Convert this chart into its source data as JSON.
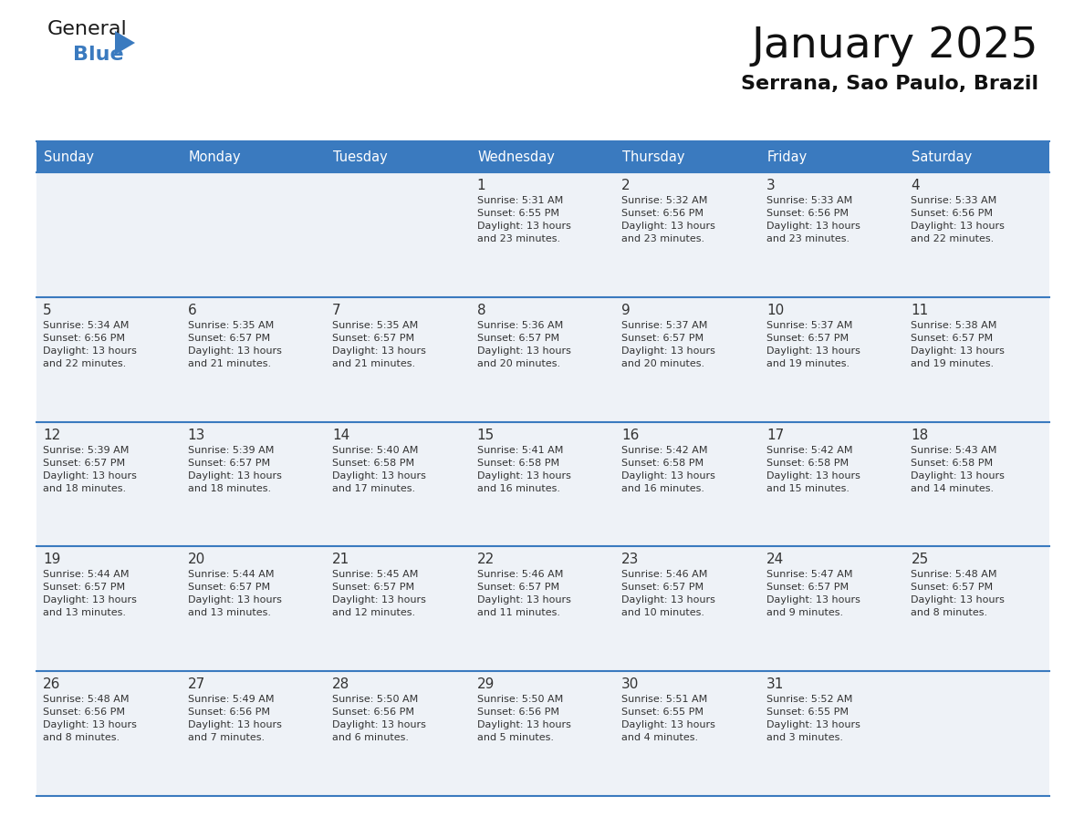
{
  "title": "January 2025",
  "subtitle": "Serrana, Sao Paulo, Brazil",
  "header_color": "#3a7abf",
  "header_text_color": "#ffffff",
  "cell_bg_even": "#eef2f7",
  "cell_bg_odd": "#eef2f7",
  "border_color": "#3a7abf",
  "text_color": "#333333",
  "days_of_week": [
    "Sunday",
    "Monday",
    "Tuesday",
    "Wednesday",
    "Thursday",
    "Friday",
    "Saturday"
  ],
  "weeks": [
    [
      {
        "day": null,
        "info": null
      },
      {
        "day": null,
        "info": null
      },
      {
        "day": null,
        "info": null
      },
      {
        "day": 1,
        "info": "Sunrise: 5:31 AM\nSunset: 6:55 PM\nDaylight: 13 hours\nand 23 minutes."
      },
      {
        "day": 2,
        "info": "Sunrise: 5:32 AM\nSunset: 6:56 PM\nDaylight: 13 hours\nand 23 minutes."
      },
      {
        "day": 3,
        "info": "Sunrise: 5:33 AM\nSunset: 6:56 PM\nDaylight: 13 hours\nand 23 minutes."
      },
      {
        "day": 4,
        "info": "Sunrise: 5:33 AM\nSunset: 6:56 PM\nDaylight: 13 hours\nand 22 minutes."
      }
    ],
    [
      {
        "day": 5,
        "info": "Sunrise: 5:34 AM\nSunset: 6:56 PM\nDaylight: 13 hours\nand 22 minutes."
      },
      {
        "day": 6,
        "info": "Sunrise: 5:35 AM\nSunset: 6:57 PM\nDaylight: 13 hours\nand 21 minutes."
      },
      {
        "day": 7,
        "info": "Sunrise: 5:35 AM\nSunset: 6:57 PM\nDaylight: 13 hours\nand 21 minutes."
      },
      {
        "day": 8,
        "info": "Sunrise: 5:36 AM\nSunset: 6:57 PM\nDaylight: 13 hours\nand 20 minutes."
      },
      {
        "day": 9,
        "info": "Sunrise: 5:37 AM\nSunset: 6:57 PM\nDaylight: 13 hours\nand 20 minutes."
      },
      {
        "day": 10,
        "info": "Sunrise: 5:37 AM\nSunset: 6:57 PM\nDaylight: 13 hours\nand 19 minutes."
      },
      {
        "day": 11,
        "info": "Sunrise: 5:38 AM\nSunset: 6:57 PM\nDaylight: 13 hours\nand 19 minutes."
      }
    ],
    [
      {
        "day": 12,
        "info": "Sunrise: 5:39 AM\nSunset: 6:57 PM\nDaylight: 13 hours\nand 18 minutes."
      },
      {
        "day": 13,
        "info": "Sunrise: 5:39 AM\nSunset: 6:57 PM\nDaylight: 13 hours\nand 18 minutes."
      },
      {
        "day": 14,
        "info": "Sunrise: 5:40 AM\nSunset: 6:58 PM\nDaylight: 13 hours\nand 17 minutes."
      },
      {
        "day": 15,
        "info": "Sunrise: 5:41 AM\nSunset: 6:58 PM\nDaylight: 13 hours\nand 16 minutes."
      },
      {
        "day": 16,
        "info": "Sunrise: 5:42 AM\nSunset: 6:58 PM\nDaylight: 13 hours\nand 16 minutes."
      },
      {
        "day": 17,
        "info": "Sunrise: 5:42 AM\nSunset: 6:58 PM\nDaylight: 13 hours\nand 15 minutes."
      },
      {
        "day": 18,
        "info": "Sunrise: 5:43 AM\nSunset: 6:58 PM\nDaylight: 13 hours\nand 14 minutes."
      }
    ],
    [
      {
        "day": 19,
        "info": "Sunrise: 5:44 AM\nSunset: 6:57 PM\nDaylight: 13 hours\nand 13 minutes."
      },
      {
        "day": 20,
        "info": "Sunrise: 5:44 AM\nSunset: 6:57 PM\nDaylight: 13 hours\nand 13 minutes."
      },
      {
        "day": 21,
        "info": "Sunrise: 5:45 AM\nSunset: 6:57 PM\nDaylight: 13 hours\nand 12 minutes."
      },
      {
        "day": 22,
        "info": "Sunrise: 5:46 AM\nSunset: 6:57 PM\nDaylight: 13 hours\nand 11 minutes."
      },
      {
        "day": 23,
        "info": "Sunrise: 5:46 AM\nSunset: 6:57 PM\nDaylight: 13 hours\nand 10 minutes."
      },
      {
        "day": 24,
        "info": "Sunrise: 5:47 AM\nSunset: 6:57 PM\nDaylight: 13 hours\nand 9 minutes."
      },
      {
        "day": 25,
        "info": "Sunrise: 5:48 AM\nSunset: 6:57 PM\nDaylight: 13 hours\nand 8 minutes."
      }
    ],
    [
      {
        "day": 26,
        "info": "Sunrise: 5:48 AM\nSunset: 6:56 PM\nDaylight: 13 hours\nand 8 minutes."
      },
      {
        "day": 27,
        "info": "Sunrise: 5:49 AM\nSunset: 6:56 PM\nDaylight: 13 hours\nand 7 minutes."
      },
      {
        "day": 28,
        "info": "Sunrise: 5:50 AM\nSunset: 6:56 PM\nDaylight: 13 hours\nand 6 minutes."
      },
      {
        "day": 29,
        "info": "Sunrise: 5:50 AM\nSunset: 6:56 PM\nDaylight: 13 hours\nand 5 minutes."
      },
      {
        "day": 30,
        "info": "Sunrise: 5:51 AM\nSunset: 6:55 PM\nDaylight: 13 hours\nand 4 minutes."
      },
      {
        "day": 31,
        "info": "Sunrise: 5:52 AM\nSunset: 6:55 PM\nDaylight: 13 hours\nand 3 minutes."
      },
      {
        "day": null,
        "info": null
      }
    ]
  ],
  "logo_general_color": "#1a1a1a",
  "logo_blue_color": "#3a7abf",
  "logo_triangle_color": "#3a7abf"
}
